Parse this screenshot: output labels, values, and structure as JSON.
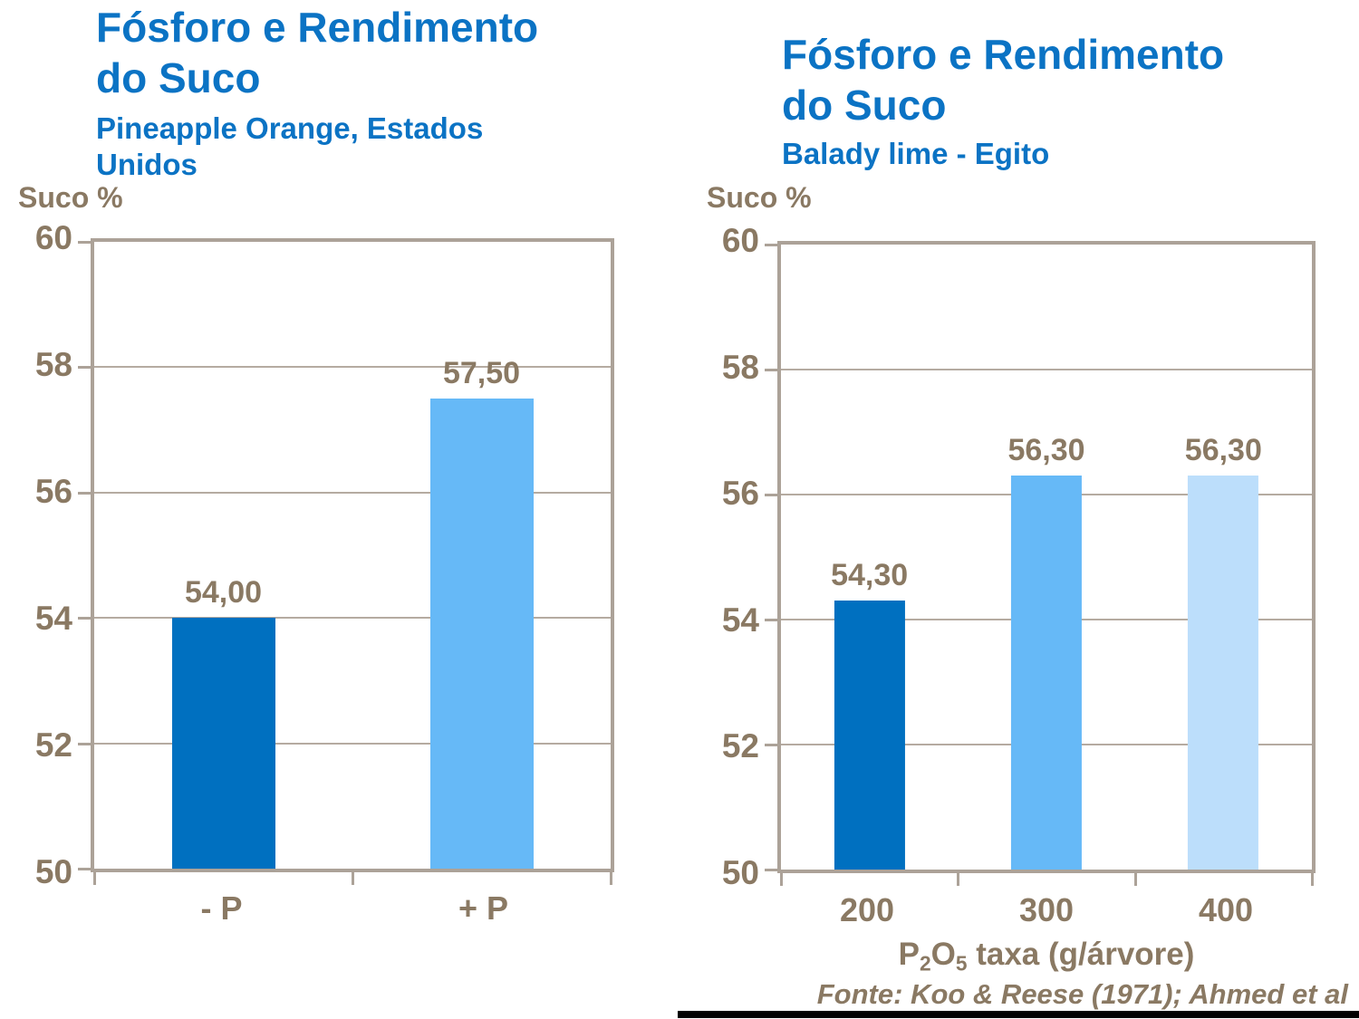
{
  "colors": {
    "title_blue": "#0b73c4",
    "dark_blue_bar": "#0070c0",
    "light_blue_bar": "#66b9f7",
    "pale_blue_bar": "#bcdefb",
    "axis_text_brown": "#8a7963",
    "gridline_tan": "#b5aba1",
    "frame_tan": "#aca298",
    "rule_black": "#000000"
  },
  "chart_data": [
    {
      "type": "bar",
      "title_line1": "Fósforo e Rendimento",
      "title_line2": "do Suco",
      "subtitle_line1": "Pineapple Orange, Estados",
      "subtitle_line2": "Unidos",
      "ylabel": "Suco %",
      "categories": [
        "- P",
        "+ P"
      ],
      "values": [
        54.0,
        57.5
      ],
      "value_labels": [
        "54,00",
        "57,50"
      ],
      "bar_colors": [
        "#0070c0",
        "#66b9f7"
      ],
      "ylim": [
        50,
        60
      ],
      "yticks": [
        "60",
        "58",
        "56",
        "54",
        "52",
        "50"
      ],
      "grid": true,
      "legend": "none"
    },
    {
      "type": "bar",
      "title_line1": "Fósforo e Rendimento",
      "title_line2": "do Suco",
      "subtitle_line1": "Balady lime - Egito",
      "ylabel": "Suco %",
      "categories": [
        "200",
        "300",
        "400"
      ],
      "values": [
        54.3,
        56.3,
        56.3
      ],
      "value_labels": [
        "54,30",
        "56,30",
        "56,30"
      ],
      "bar_colors": [
        "#0070c0",
        "#66b9f7",
        "#bcdefb"
      ],
      "ylim": [
        50,
        60
      ],
      "yticks": [
        "60",
        "58",
        "56",
        "54",
        "52",
        "50"
      ],
      "grid": true,
      "legend": "none",
      "xaxis_title_parts": {
        "p": "P",
        "sub1": "2",
        "o": "O",
        "sub2": "5",
        "rest": " taxa (g/árvore)"
      },
      "source": "Fonte: Koo & Reese (1971); Ahmed et al"
    }
  ]
}
